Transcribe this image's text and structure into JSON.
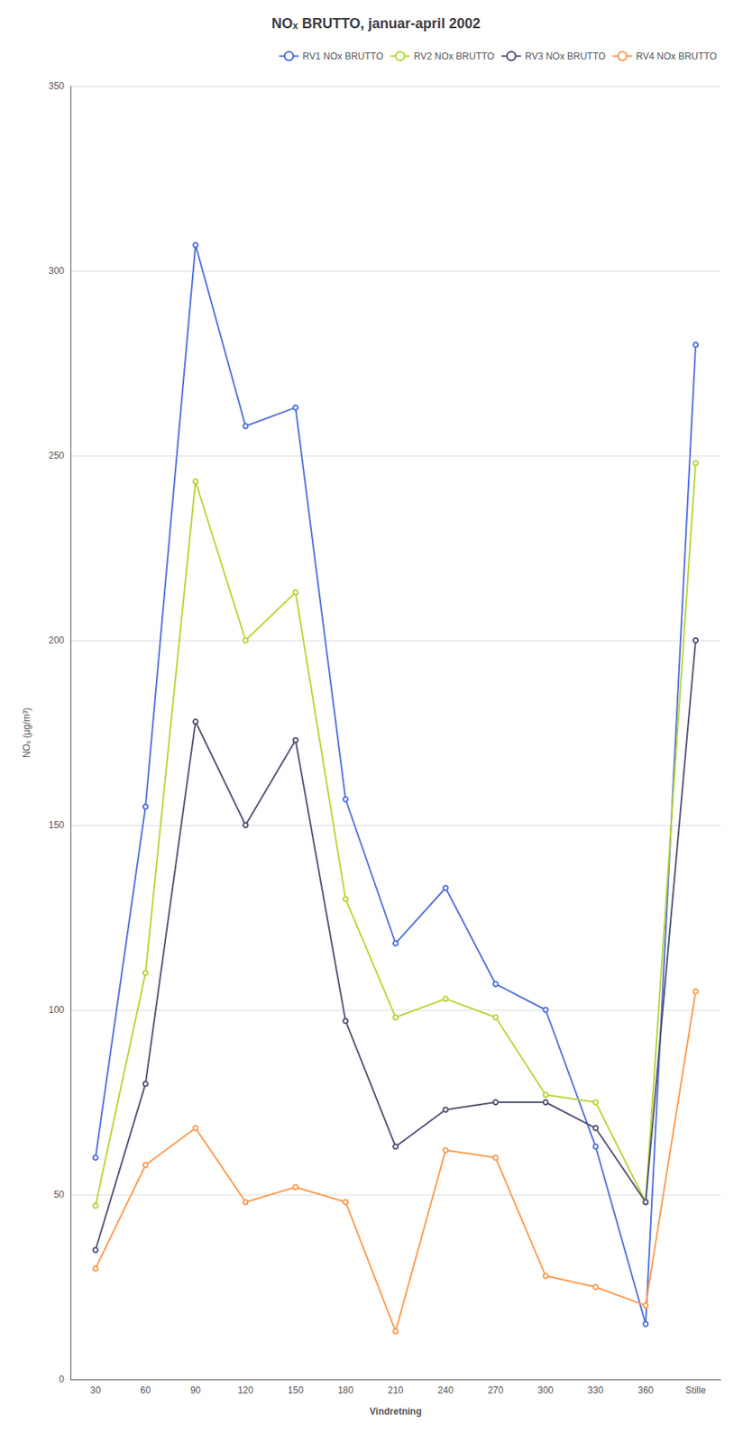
{
  "chart_data": {
    "type": "line",
    "title": "NOₓ BRUTTO, januar-april 2002",
    "xlabel": "Vindretning",
    "ylabel": "NOₓ (µg/m³)",
    "categories": [
      "30",
      "60",
      "90",
      "120",
      "150",
      "180",
      "210",
      "240",
      "270",
      "300",
      "330",
      "360",
      "Stille"
    ],
    "series": [
      {
        "name": "RV1 NOx BRUTTO",
        "values": [
          60,
          155,
          307,
          258,
          263,
          157,
          118,
          133,
          107,
          100,
          63,
          15,
          280
        ]
      },
      {
        "name": "RV2 NOx BRUTTO",
        "values": [
          47,
          110,
          243,
          200,
          213,
          130,
          98,
          103,
          98,
          77,
          75,
          48,
          248
        ]
      },
      {
        "name": "RV3 NOx BRUTTO",
        "values": [
          35,
          80,
          178,
          150,
          173,
          97,
          63,
          73,
          75,
          75,
          68,
          48,
          200
        ]
      },
      {
        "name": "RV4 NOx BRUTTO",
        "values": [
          30,
          58,
          68,
          48,
          52,
          48,
          13,
          62,
          60,
          28,
          25,
          20,
          105
        ]
      }
    ],
    "ylim": [
      0,
      350
    ],
    "yticks": [
      0,
      50,
      100,
      150,
      200,
      250,
      300,
      350
    ],
    "grid": true,
    "legend": "upper right"
  }
}
